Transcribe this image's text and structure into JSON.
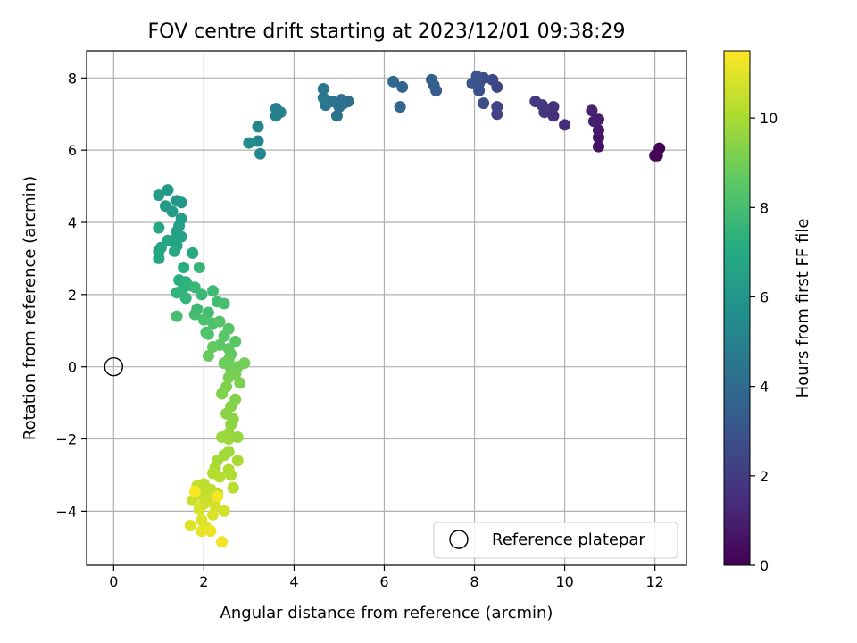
{
  "chart_data": {
    "type": "scatter",
    "title": "FOV centre drift starting at 2023/12/01 09:38:29",
    "xlabel": "Angular distance from reference (arcmin)",
    "ylabel": "Rotation from reference (arcmin)",
    "xlim": [
      -0.6,
      12.7
    ],
    "ylim": [
      -5.5,
      8.75
    ],
    "xticks": [
      0,
      2,
      4,
      6,
      8,
      10,
      12
    ],
    "yticks": [
      -4,
      -2,
      0,
      2,
      4,
      6,
      8
    ],
    "grid": true,
    "legend": {
      "placement": "lower-right",
      "entries": [
        "Reference platepar"
      ]
    },
    "colorbar": {
      "label": "Hours from first FF file",
      "range": [
        0,
        11.5
      ],
      "ticks": [
        0,
        2,
        4,
        6,
        8,
        10
      ],
      "colormap": "viridis"
    },
    "reference_point": {
      "x": 0,
      "y": 0
    },
    "series": [
      {
        "points": [
          [
            12.05,
            5.85,
            0.0
          ],
          [
            12.1,
            6.05,
            0.05
          ],
          [
            12.0,
            5.85,
            0.1
          ],
          [
            10.75,
            6.1,
            0.6
          ],
          [
            10.75,
            6.35,
            0.7
          ],
          [
            10.75,
            6.55,
            0.8
          ],
          [
            10.75,
            6.85,
            0.9
          ],
          [
            10.65,
            6.8,
            1.0
          ],
          [
            10.6,
            7.1,
            1.1
          ],
          [
            10.0,
            6.7,
            1.4
          ],
          [
            9.75,
            6.95,
            1.5
          ],
          [
            9.75,
            7.2,
            1.6
          ],
          [
            9.55,
            7.05,
            1.7
          ],
          [
            9.5,
            7.25,
            1.8
          ],
          [
            9.35,
            7.35,
            1.9
          ],
          [
            8.5,
            7.0,
            2.2
          ],
          [
            8.5,
            7.2,
            2.3
          ],
          [
            8.5,
            7.75,
            2.4
          ],
          [
            8.4,
            7.95,
            2.5
          ],
          [
            8.2,
            7.3,
            2.6
          ],
          [
            8.2,
            8.0,
            2.7
          ],
          [
            8.1,
            7.65,
            2.75
          ],
          [
            8.1,
            7.85,
            2.8
          ],
          [
            8.05,
            8.05,
            2.9
          ],
          [
            7.95,
            7.85,
            3.0
          ],
          [
            7.15,
            7.65,
            3.3
          ],
          [
            7.1,
            7.8,
            3.4
          ],
          [
            7.05,
            7.95,
            3.5
          ],
          [
            6.35,
            7.2,
            3.7
          ],
          [
            6.4,
            7.75,
            3.75
          ],
          [
            6.2,
            7.9,
            3.85
          ],
          [
            5.2,
            7.35,
            4.1
          ],
          [
            5.1,
            7.3,
            4.2
          ],
          [
            5.05,
            7.4,
            4.25
          ],
          [
            5.0,
            7.2,
            4.3
          ],
          [
            4.95,
            6.95,
            4.35
          ],
          [
            4.85,
            7.35,
            4.4
          ],
          [
            4.7,
            7.25,
            4.5
          ],
          [
            4.65,
            7.7,
            4.55
          ],
          [
            4.65,
            7.45,
            4.6
          ],
          [
            3.7,
            7.05,
            4.9
          ],
          [
            3.6,
            7.15,
            4.95
          ],
          [
            3.6,
            6.95,
            5.0
          ],
          [
            3.2,
            6.65,
            5.2
          ],
          [
            3.2,
            6.25,
            5.3
          ],
          [
            3.25,
            5.9,
            5.35
          ],
          [
            3.0,
            6.2,
            5.45
          ],
          [
            1.5,
            4.55,
            6.1
          ],
          [
            1.4,
            4.6,
            6.15
          ],
          [
            1.2,
            4.9,
            6.2
          ],
          [
            1.15,
            4.45,
            6.25
          ],
          [
            1.0,
            4.75,
            6.3
          ],
          [
            1.3,
            4.3,
            6.35
          ],
          [
            1.5,
            4.1,
            6.4
          ],
          [
            1.45,
            3.9,
            6.45
          ],
          [
            1.4,
            3.75,
            6.5
          ],
          [
            1.5,
            3.6,
            6.55
          ],
          [
            1.3,
            3.5,
            6.6
          ],
          [
            1.4,
            3.35,
            6.65
          ],
          [
            1.2,
            3.5,
            6.7
          ],
          [
            1.05,
            3.3,
            6.75
          ],
          [
            1.0,
            3.2,
            6.8
          ],
          [
            1.0,
            3.0,
            6.85
          ],
          [
            1.0,
            3.85,
            6.9
          ],
          [
            1.35,
            3.2,
            6.95
          ],
          [
            1.75,
            3.15,
            7.0
          ],
          [
            1.55,
            2.75,
            7.1
          ],
          [
            1.45,
            2.4,
            7.2
          ],
          [
            1.6,
            2.35,
            7.3
          ],
          [
            1.5,
            2.1,
            7.35
          ],
          [
            1.65,
            2.25,
            7.4
          ],
          [
            1.4,
            2.05,
            7.45
          ],
          [
            1.6,
            1.9,
            7.5
          ],
          [
            1.9,
            2.75,
            7.6
          ],
          [
            1.8,
            2.2,
            7.65
          ],
          [
            1.95,
            2.0,
            7.7
          ],
          [
            1.85,
            1.6,
            7.75
          ],
          [
            2.2,
            2.1,
            7.8
          ],
          [
            2.3,
            1.8,
            7.85
          ],
          [
            2.1,
            1.5,
            7.9
          ],
          [
            1.8,
            1.45,
            7.95
          ],
          [
            1.4,
            1.4,
            8.0
          ],
          [
            2.45,
            1.75,
            8.05
          ],
          [
            2.2,
            1.2,
            8.1
          ],
          [
            2.0,
            1.3,
            8.15
          ],
          [
            2.05,
            0.95,
            8.2
          ],
          [
            2.1,
            0.9,
            8.25
          ],
          [
            2.35,
            1.25,
            8.3
          ],
          [
            2.55,
            1.05,
            8.4
          ],
          [
            2.45,
            0.85,
            8.45
          ],
          [
            2.7,
            0.7,
            8.5
          ],
          [
            2.35,
            0.6,
            8.55
          ],
          [
            2.55,
            0.5,
            8.6
          ],
          [
            2.6,
            0.35,
            8.65
          ],
          [
            2.2,
            0.55,
            8.7
          ],
          [
            2.1,
            0.3,
            8.75
          ],
          [
            2.55,
            0.2,
            8.8
          ],
          [
            2.45,
            0.1,
            8.85
          ],
          [
            2.6,
            -0.05,
            8.9
          ],
          [
            2.75,
            0.0,
            8.95
          ],
          [
            2.9,
            0.1,
            9.0
          ],
          [
            2.7,
            -0.2,
            9.05
          ],
          [
            2.55,
            -0.3,
            9.1
          ],
          [
            2.8,
            -0.45,
            9.15
          ],
          [
            2.5,
            -0.55,
            9.2
          ],
          [
            2.4,
            -0.75,
            9.25
          ],
          [
            2.7,
            -0.9,
            9.3
          ],
          [
            2.6,
            -1.1,
            9.35
          ],
          [
            2.5,
            -1.3,
            9.4
          ],
          [
            2.65,
            -1.45,
            9.45
          ],
          [
            2.6,
            -1.6,
            9.5
          ],
          [
            2.55,
            -1.85,
            9.6
          ],
          [
            2.75,
            -1.95,
            9.65
          ],
          [
            2.55,
            -2.0,
            9.7
          ],
          [
            2.4,
            -1.95,
            9.75
          ],
          [
            2.55,
            -2.35,
            9.8
          ],
          [
            2.45,
            -2.45,
            9.85
          ],
          [
            2.3,
            -2.6,
            9.9
          ],
          [
            2.75,
            -2.6,
            9.95
          ],
          [
            2.25,
            -2.8,
            10.0
          ],
          [
            2.55,
            -2.85,
            10.05
          ],
          [
            2.6,
            -3.0,
            10.1
          ],
          [
            2.2,
            -2.95,
            10.15
          ],
          [
            2.35,
            -3.05,
            10.2
          ],
          [
            2.65,
            -3.35,
            10.25
          ],
          [
            2.0,
            -3.25,
            10.3
          ],
          [
            2.15,
            -3.4,
            10.35
          ],
          [
            1.85,
            -3.3,
            10.4
          ],
          [
            2.3,
            -3.5,
            10.45
          ],
          [
            1.95,
            -3.55,
            10.5
          ],
          [
            2.15,
            -3.65,
            10.55
          ],
          [
            1.75,
            -3.7,
            10.6
          ],
          [
            2.0,
            -3.8,
            10.65
          ],
          [
            2.25,
            -3.85,
            10.7
          ],
          [
            2.45,
            -4.0,
            10.75
          ],
          [
            1.9,
            -3.95,
            10.8
          ],
          [
            2.2,
            -4.1,
            10.85
          ],
          [
            1.95,
            -4.25,
            10.9
          ],
          [
            1.7,
            -4.4,
            10.95
          ],
          [
            2.05,
            -4.45,
            11.0
          ],
          [
            1.95,
            -4.55,
            11.1
          ],
          [
            2.15,
            -4.55,
            11.2
          ],
          [
            2.4,
            -4.85,
            11.3
          ],
          [
            2.3,
            -3.6,
            11.35
          ],
          [
            1.8,
            -3.45,
            11.45
          ]
        ]
      }
    ]
  }
}
